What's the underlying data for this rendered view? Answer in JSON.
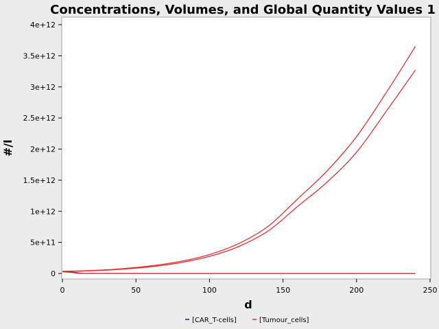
{
  "chart_data": {
    "type": "line",
    "title": "Concentrations, Volumes, and Global Quantity Values 1",
    "xlabel": "d",
    "ylabel": "#/l",
    "xlim": [
      0,
      250
    ],
    "ylim": [
      0,
      4000000000000.0
    ],
    "x_ticks": [
      0,
      50,
      100,
      150,
      200,
      250
    ],
    "x_tick_labels": [
      "0",
      "50",
      "100",
      "150",
      "200",
      "250"
    ],
    "y_ticks": [
      0,
      500000000000.0,
      1000000000000.0,
      1500000000000.0,
      2000000000000.0,
      2500000000000.0,
      3000000000000.0,
      3500000000000.0,
      4000000000000.0
    ],
    "y_tick_labels": [
      "0",
      "5e+11",
      "1e+12",
      "1.5e+12",
      "2e+12",
      "2.5e+12",
      "3e+12",
      "3.5e+12",
      "4e+12"
    ],
    "grid": false,
    "legend_position": "bottom-center",
    "series": [
      {
        "name": "[CAR_T-cells]",
        "color": "#1a1a80",
        "x": [
          0,
          5,
          10,
          12,
          20,
          50,
          100,
          150,
          200,
          240
        ],
        "y": [
          30000000000.0,
          22000000000.0,
          12000000000.0,
          5000000000.0,
          1000000000.0,
          0,
          0,
          0,
          0,
          0
        ]
      },
      {
        "name": "[Tumour_cells]",
        "color": "#e03030",
        "x": [
          0,
          20,
          40,
          60,
          80,
          100,
          120,
          140,
          160,
          180,
          200,
          220,
          240
        ],
        "y": [
          35000000000.0,
          48000000000.0,
          76000000000.0,
          122000000000.0,
          193000000000.0,
          305000000000.0,
          483000000000.0,
          760000000000.0,
          1200000000000.0,
          1650000000000.0,
          2200000000000.0,
          2900000000000.0,
          3650000000000.0
        ]
      },
      {
        "name": "[Tumour_cells]",
        "color": "#e03030",
        "x": [
          0,
          20,
          40,
          60,
          80,
          100,
          120,
          140,
          160,
          180,
          200,
          220,
          240
        ],
        "y": [
          30000000000.0,
          43000000000.0,
          68000000000.0,
          108000000000.0,
          173000000000.0,
          275000000000.0,
          435000000000.0,
          685000000000.0,
          1080000000000.0,
          1470000000000.0,
          1950000000000.0,
          2600000000000.0,
          3270000000000.0
        ]
      },
      {
        "name": "[Tumour_cells]",
        "color": "#e03030",
        "x": [
          0,
          5,
          10,
          12,
          20,
          50,
          100,
          150,
          200,
          240
        ],
        "y": [
          28000000000.0,
          18000000000.0,
          6000000000.0,
          1000000000.0,
          0,
          0,
          0,
          0,
          0,
          0
        ]
      }
    ],
    "legend": [
      {
        "name": "[CAR_T-cells]",
        "color": "#1a1a80"
      },
      {
        "name": "[Tumour_cells]",
        "color": "#e03030"
      }
    ]
  }
}
